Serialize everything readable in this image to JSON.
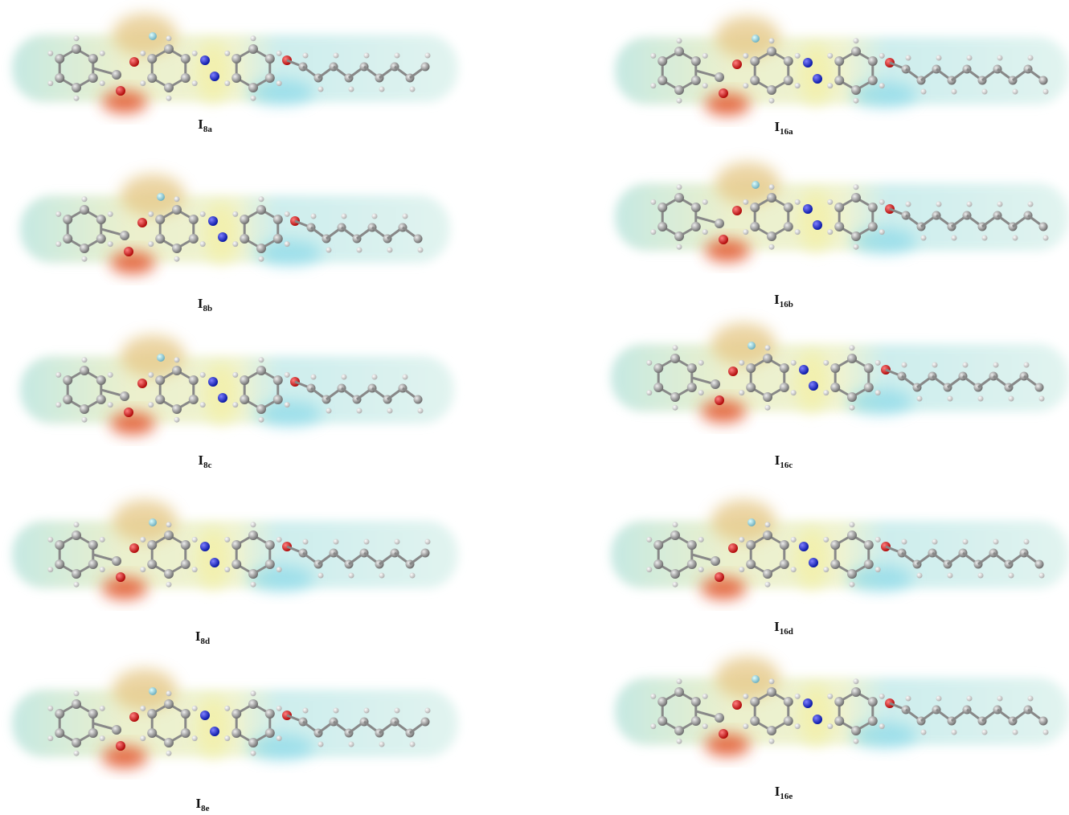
{
  "panels": [
    {
      "label": {
        "main": "I",
        "sub": "8a"
      }
    },
    {
      "label": {
        "main": "I",
        "sub": "16a"
      }
    },
    {
      "label": {
        "main": "I",
        "sub": "8b"
      }
    },
    {
      "label": {
        "main": "I",
        "sub": "16b"
      }
    },
    {
      "label": {
        "main": "I",
        "sub": "8c"
      }
    },
    {
      "label": {
        "main": "I",
        "sub": "16c"
      }
    },
    {
      "label": {
        "main": "I",
        "sub": "8d"
      }
    },
    {
      "label": {
        "main": "I",
        "sub": "16d"
      }
    },
    {
      "label": {
        "main": "I",
        "sub": "8e"
      }
    },
    {
      "label": {
        "main": "I",
        "sub": "16e"
      }
    }
  ]
}
